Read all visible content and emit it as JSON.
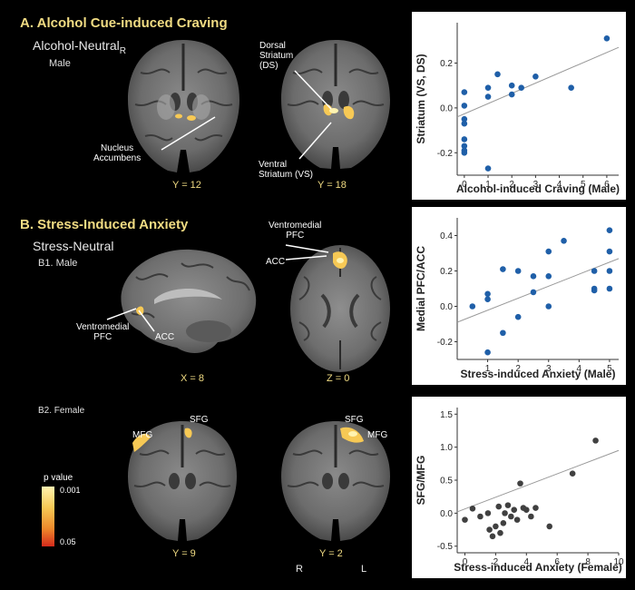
{
  "sectionA": {
    "title": "A. Alcohol Cue-induced Craving",
    "contrast": "Alcohol-Neutral",
    "contrast_sub": "R",
    "group": "Male",
    "labels": {
      "nucleus_accumbens": "Nucleus\nAccumbens",
      "dorsal_striatum": "Dorsal\nStriatum\n(DS)",
      "ventral_striatum": "Ventral\nStriatum (VS)"
    },
    "coords": [
      "Y = 12",
      "Y = 18"
    ]
  },
  "sectionB": {
    "title": "B. Stress-Induced Anxiety",
    "contrast": "Stress-Neutral",
    "group_b1": "B1. Male",
    "group_b2": "B2. Female",
    "labels": {
      "ventromedial_pfc_top": "Ventromedial\nPFC",
      "acc_top": "ACC",
      "ventromedial_pfc_sag": "Ventromedial\nPFC",
      "acc_sag": "ACC",
      "mfg_left": "MFG",
      "sfg_left": "SFG",
      "sfg_right": "SFG",
      "mfg_right": "MFG"
    },
    "coords_b1": [
      "X = 8",
      "Z = 0"
    ],
    "coords_b2": [
      "Y = 9",
      "Y = 2"
    ],
    "orientation": {
      "right": "R",
      "left": "L"
    }
  },
  "legend": {
    "title": "p value",
    "top": "0.001",
    "bottom": "0.05",
    "colors": [
      "#fff3b0",
      "#f7c955",
      "#ee8a2b",
      "#d42a1c"
    ]
  },
  "chart_data": [
    {
      "type": "scatter",
      "xlabel": "Alcohol-induced Craving (Male)",
      "ylabel": "Striatum (VS, DS)",
      "xlim": [
        -0.3,
        6.5
      ],
      "ylim": [
        -0.3,
        0.38
      ],
      "xticks": [
        0,
        1,
        2,
        3,
        4,
        5,
        6
      ],
      "yticks": [
        -0.2,
        0.0,
        0.2
      ],
      "point_color": "#1f5fa8",
      "fit": [
        [
          -0.3,
          -0.04
        ],
        [
          6.5,
          0.27
        ]
      ],
      "points": [
        [
          0,
          0.07
        ],
        [
          0,
          0.01
        ],
        [
          0,
          -0.05
        ],
        [
          0,
          -0.07
        ],
        [
          0,
          -0.14
        ],
        [
          0,
          -0.17
        ],
        [
          0,
          -0.19
        ],
        [
          0,
          -0.2
        ],
        [
          1,
          0.09
        ],
        [
          1,
          0.05
        ],
        [
          1,
          -0.27
        ],
        [
          1.4,
          0.15
        ],
        [
          2,
          0.1
        ],
        [
          2,
          0.06
        ],
        [
          2.4,
          0.09
        ],
        [
          3,
          0.14
        ],
        [
          4.5,
          0.09
        ],
        [
          6,
          0.31
        ]
      ]
    },
    {
      "type": "scatter",
      "xlabel": "Stress-induced Anxiety (Male)",
      "ylabel": "Medial PFC/ACC",
      "xlim": [
        0,
        5.3
      ],
      "ylim": [
        -0.3,
        0.5
      ],
      "xticks": [
        1,
        2,
        3,
        4,
        5
      ],
      "yticks": [
        -0.2,
        0.0,
        0.2,
        0.4
      ],
      "point_color": "#1f5fa8",
      "fit": [
        [
          0,
          -0.09
        ],
        [
          5.3,
          0.27
        ]
      ],
      "points": [
        [
          0.5,
          0.0
        ],
        [
          1,
          0.07
        ],
        [
          1,
          0.04
        ],
        [
          1,
          -0.26
        ],
        [
          1.5,
          0.21
        ],
        [
          1.5,
          -0.15
        ],
        [
          2,
          0.2
        ],
        [
          2,
          -0.06
        ],
        [
          2.5,
          0.17
        ],
        [
          2.5,
          0.08
        ],
        [
          3,
          0.31
        ],
        [
          3,
          0.17
        ],
        [
          3,
          0.0
        ],
        [
          3.5,
          0.37
        ],
        [
          4.5,
          0.2
        ],
        [
          4.5,
          0.1
        ],
        [
          4.5,
          0.09
        ],
        [
          5,
          0.43
        ],
        [
          5,
          0.31
        ],
        [
          5,
          0.2
        ],
        [
          5,
          0.1
        ]
      ]
    },
    {
      "type": "scatter",
      "xlabel": "Stress-induced Anxiety (Female)",
      "ylabel": "SFG/MFG",
      "xlim": [
        -0.5,
        10
      ],
      "ylim": [
        -0.6,
        1.6
      ],
      "xticks": [
        0,
        2,
        4,
        6,
        8,
        10
      ],
      "yticks": [
        -0.5,
        0.0,
        0.5,
        1.0,
        1.5
      ],
      "point_color": "#404040",
      "fit": [
        [
          -0.5,
          0.02
        ],
        [
          10,
          0.95
        ]
      ],
      "points": [
        [
          0,
          -0.1
        ],
        [
          0.5,
          0.07
        ],
        [
          1,
          -0.05
        ],
        [
          1.5,
          0.0
        ],
        [
          1.6,
          -0.25
        ],
        [
          1.8,
          -0.35
        ],
        [
          2,
          -0.2
        ],
        [
          2.2,
          0.1
        ],
        [
          2.3,
          -0.3
        ],
        [
          2.5,
          -0.15
        ],
        [
          2.6,
          0.0
        ],
        [
          2.8,
          0.12
        ],
        [
          3,
          -0.05
        ],
        [
          3.2,
          0.05
        ],
        [
          3.4,
          -0.1
        ],
        [
          3.6,
          0.45
        ],
        [
          3.8,
          0.08
        ],
        [
          4,
          0.05
        ],
        [
          4.3,
          -0.05
        ],
        [
          4.6,
          0.08
        ],
        [
          5.5,
          -0.2
        ],
        [
          7,
          0.6
        ],
        [
          8.5,
          1.1
        ]
      ]
    }
  ]
}
